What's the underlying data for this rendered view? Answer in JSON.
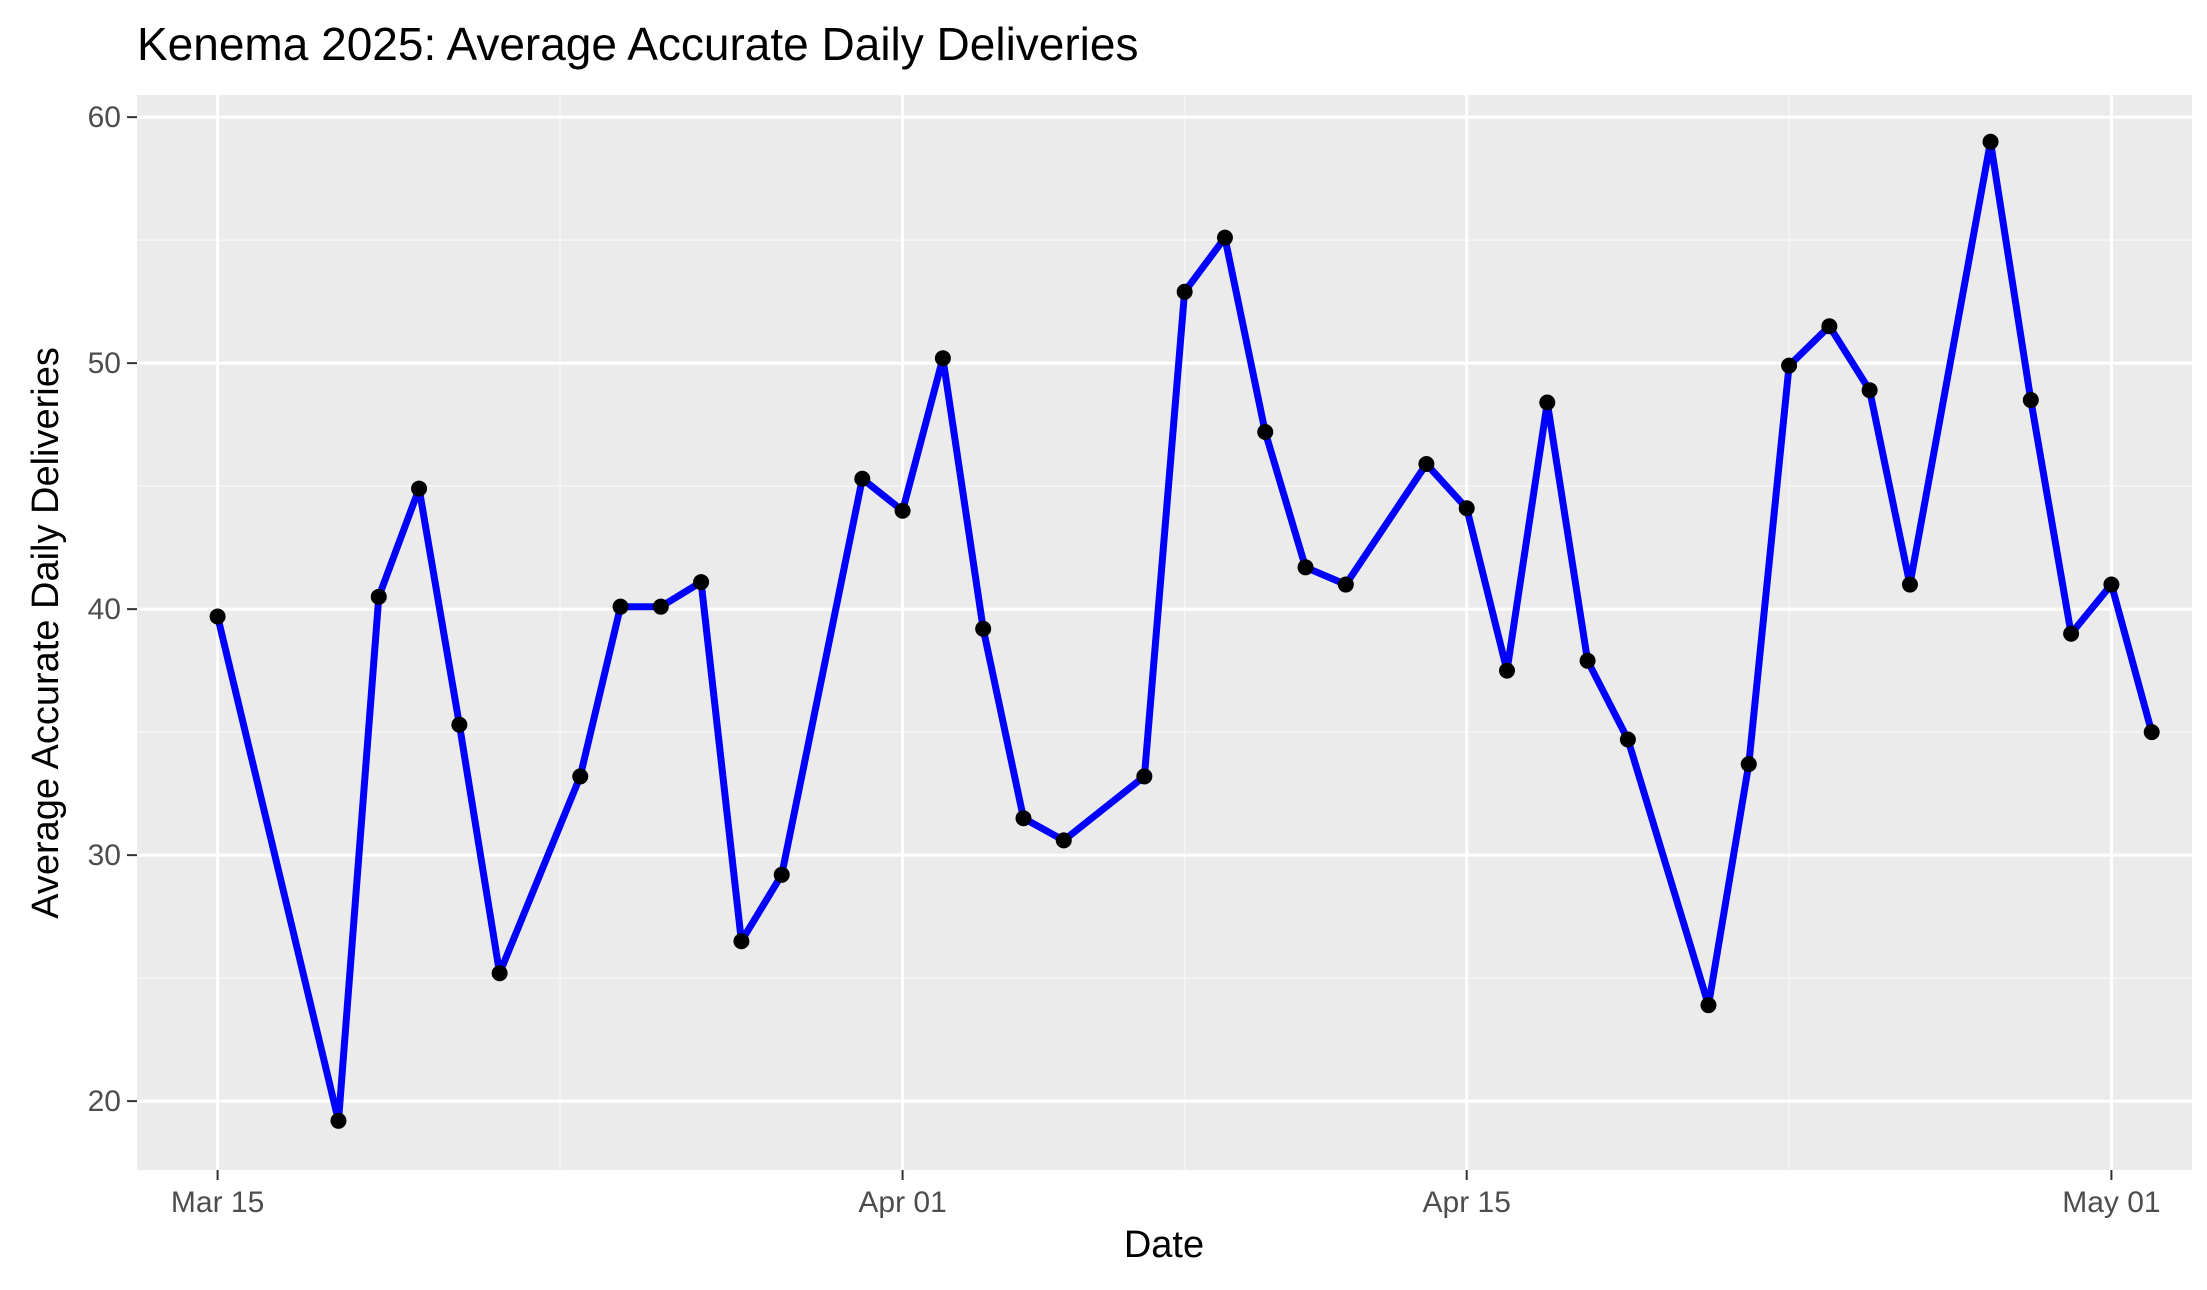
{
  "chart_data": {
    "type": "line",
    "title": "Kenema 2025: Average Accurate Daily Deliveries",
    "xlabel": "Date",
    "ylabel": "Average Accurate Daily Deliveries",
    "xlim": [
      "2025-03-13",
      "2025-05-03"
    ],
    "ylim": [
      17.2,
      60.9
    ],
    "x_ticks": [
      {
        "date": "2025-03-15",
        "label": "Mar 15"
      },
      {
        "date": "2025-04-01",
        "label": "Apr 01"
      },
      {
        "date": "2025-04-15",
        "label": "Apr 15"
      },
      {
        "date": "2025-05-01",
        "label": "May 01"
      }
    ],
    "y_ticks": [
      20,
      30,
      40,
      50,
      60
    ],
    "grid": true,
    "legend": "none",
    "colors": {
      "line": "#0000ff",
      "point": "#000000",
      "panel_background": "#ebebeb",
      "grid_major": "#ffffff",
      "grid_minor": "#f5f5f5"
    },
    "series": [
      {
        "x": [
          "2025-03-15",
          "2025-03-18",
          "2025-03-19",
          "2025-03-20",
          "2025-03-21",
          "2025-03-22",
          "2025-03-24",
          "2025-03-25",
          "2025-03-26",
          "2025-03-27",
          "2025-03-28",
          "2025-03-29",
          "2025-03-31",
          "2025-04-01",
          "2025-04-02",
          "2025-04-03",
          "2025-04-04",
          "2025-04-05",
          "2025-04-07",
          "2025-04-08",
          "2025-04-09",
          "2025-04-10",
          "2025-04-11",
          "2025-04-12",
          "2025-04-14",
          "2025-04-15",
          "2025-04-16",
          "2025-04-17",
          "2025-04-18",
          "2025-04-19",
          "2025-04-21",
          "2025-04-22",
          "2025-04-23",
          "2025-04-24",
          "2025-04-25",
          "2025-04-26",
          "2025-04-28",
          "2025-04-29",
          "2025-04-30",
          "2025-05-01",
          "2025-05-02"
        ],
        "values": [
          39.7,
          19.2,
          40.5,
          44.9,
          35.3,
          25.2,
          33.2,
          40.1,
          40.1,
          41.1,
          26.5,
          29.2,
          45.3,
          44.0,
          50.2,
          39.2,
          31.5,
          30.6,
          33.2,
          52.9,
          55.1,
          47.2,
          41.7,
          41.0,
          45.9,
          44.1,
          37.5,
          48.4,
          37.9,
          34.7,
          23.9,
          33.7,
          49.9,
          51.5,
          48.9,
          41.0,
          59.0,
          48.5,
          39.0,
          41.0,
          35.0
        ]
      }
    ]
  }
}
